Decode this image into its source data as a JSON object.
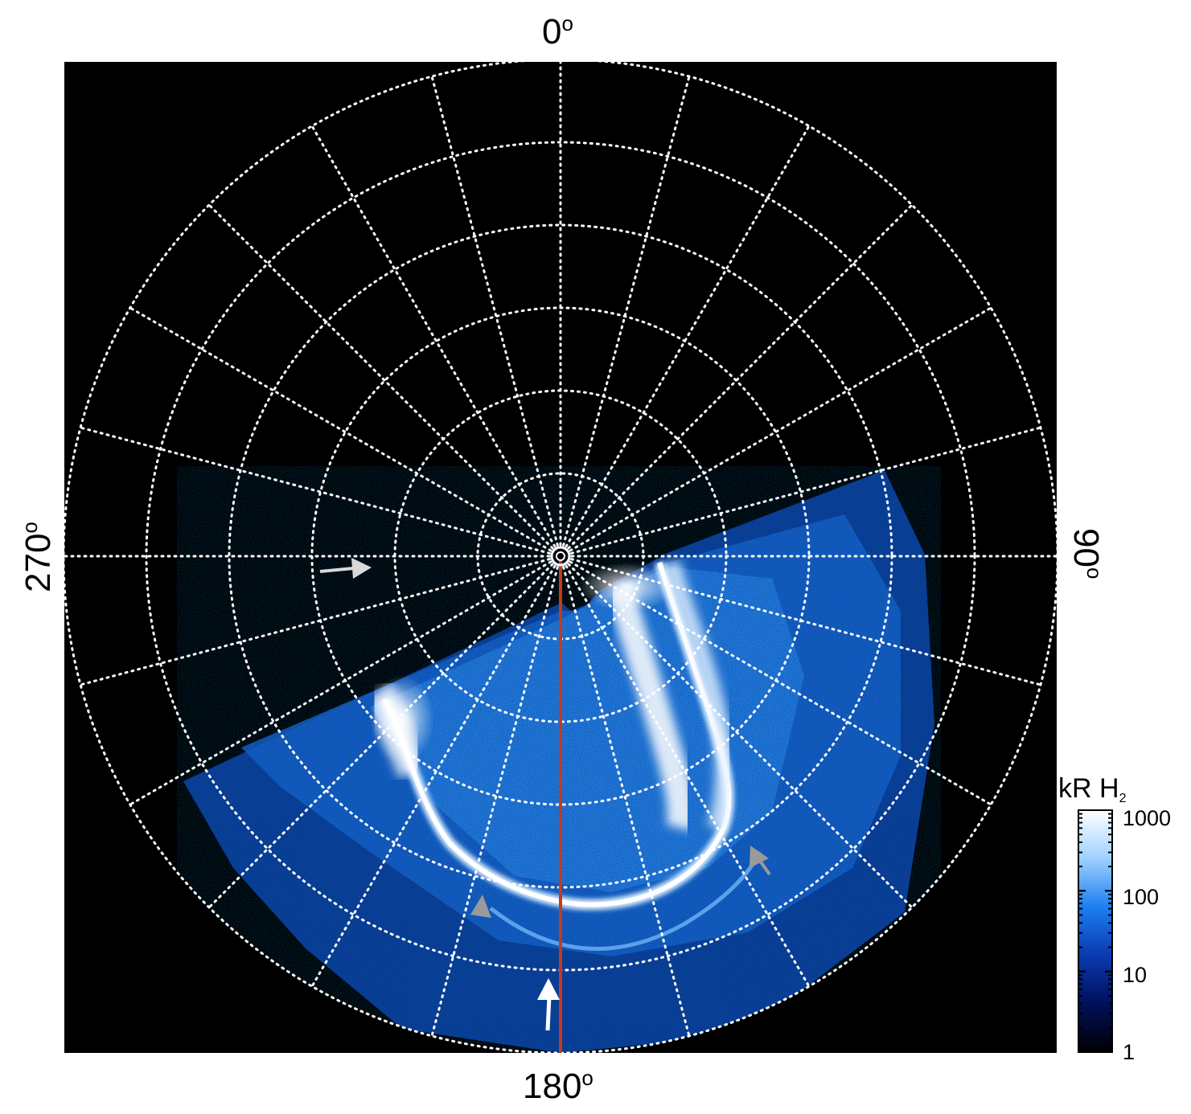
{
  "axis_labels": {
    "top": "0",
    "right": "90",
    "bottom": "180",
    "left": "270",
    "degree_symbol": "o"
  },
  "colorbar": {
    "unit": "kR H",
    "unit_subscript": "2",
    "scale": "log",
    "ticks": [
      "1000",
      "100",
      "10",
      "1"
    ],
    "colors": [
      "#000000",
      "#00105a",
      "#0a3ab0",
      "#1c7ff0",
      "#9ed0ff",
      "#ffffff"
    ]
  },
  "grid": {
    "style": "dotted",
    "color": "#ffffff",
    "meridian_count": 24,
    "parallel_count": 6
  },
  "central_meridian_color": "#c8391a",
  "arrows": [
    {
      "name": "left-arrow",
      "color": "#d9d9d9"
    },
    {
      "name": "bottom-arrow",
      "color": "#ffffff"
    },
    {
      "name": "lower-left-arrow",
      "color": "#9a9a9a"
    },
    {
      "name": "lower-right-arrow",
      "color": "#9a9a9a"
    }
  ]
}
